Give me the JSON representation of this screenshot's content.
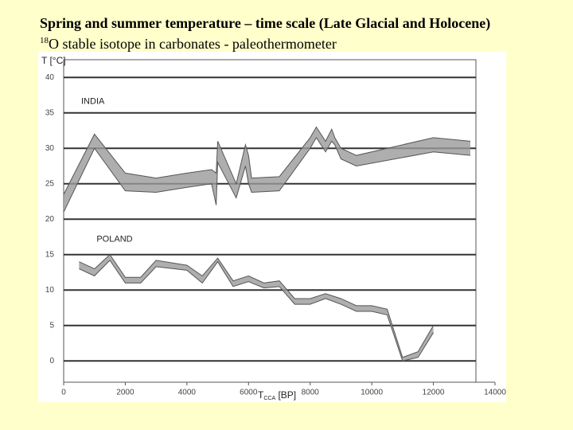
{
  "chart_data": {
    "type": "band",
    "title": "Spring and summer temperature – time scale (Late Glacial and Holocene)",
    "subtitle": {
      "sup": "18",
      "text": "O stable isotope in carbonates - paleothermometer"
    },
    "y_label": "T [°C]",
    "x_label": {
      "main": "T",
      "sub": "CCA",
      "rest": " [BP]"
    },
    "xlim": [
      0,
      14000
    ],
    "xticks": [
      0,
      2000,
      4000,
      6000,
      8000,
      10000,
      12000,
      14000
    ],
    "ylim": [
      -3,
      42.5
    ],
    "yticks": [
      0,
      5,
      10,
      15,
      20,
      25,
      30,
      35,
      40
    ],
    "grid": true,
    "series": [
      {
        "name": "INDIA",
        "color": "#9a9a9a",
        "x": [
          0,
          1000,
          2000,
          3000,
          4000,
          4800,
          4950,
          5000,
          5600,
          5900,
          6000,
          6100,
          7000,
          8000,
          8200,
          8500,
          8700,
          8800,
          9000,
          9500,
          12000,
          13200
        ],
        "low": [
          21,
          30,
          24,
          23.8,
          24.5,
          25,
          22,
          28,
          23,
          27.5,
          25,
          23.8,
          24,
          30,
          31.5,
          29.5,
          31,
          30.5,
          28.5,
          27.5,
          29.5,
          29
        ],
        "high": [
          23.5,
          32,
          26.5,
          25.8,
          26.5,
          27,
          26.5,
          31,
          25,
          30.5,
          29,
          25.8,
          26,
          31.5,
          33,
          31,
          32.7,
          31.5,
          30,
          29,
          31.5,
          31
        ]
      },
      {
        "name": "POLAND",
        "color": "#9a9a9a",
        "x": [
          500,
          1000,
          1500,
          2000,
          2500,
          3000,
          4000,
          4500,
          5000,
          5500,
          6000,
          6500,
          7000,
          7500,
          8000,
          8500,
          9000,
          9500,
          10000,
          10500,
          11000,
          11500,
          12000
        ],
        "low": [
          13,
          12,
          14.2,
          11,
          11,
          13.3,
          12.8,
          11,
          14,
          10.5,
          11.2,
          10.3,
          10.5,
          8,
          8,
          8.8,
          8,
          7,
          7,
          6.5,
          0,
          0.5,
          4
        ],
        "high": [
          14,
          13,
          15,
          11.8,
          11.8,
          14.2,
          13.5,
          12,
          14.5,
          11.3,
          12,
          11,
          11.3,
          8.8,
          8.8,
          9.5,
          8.8,
          7.8,
          7.8,
          7.3,
          0.5,
          1.3,
          5
        ]
      }
    ]
  }
}
